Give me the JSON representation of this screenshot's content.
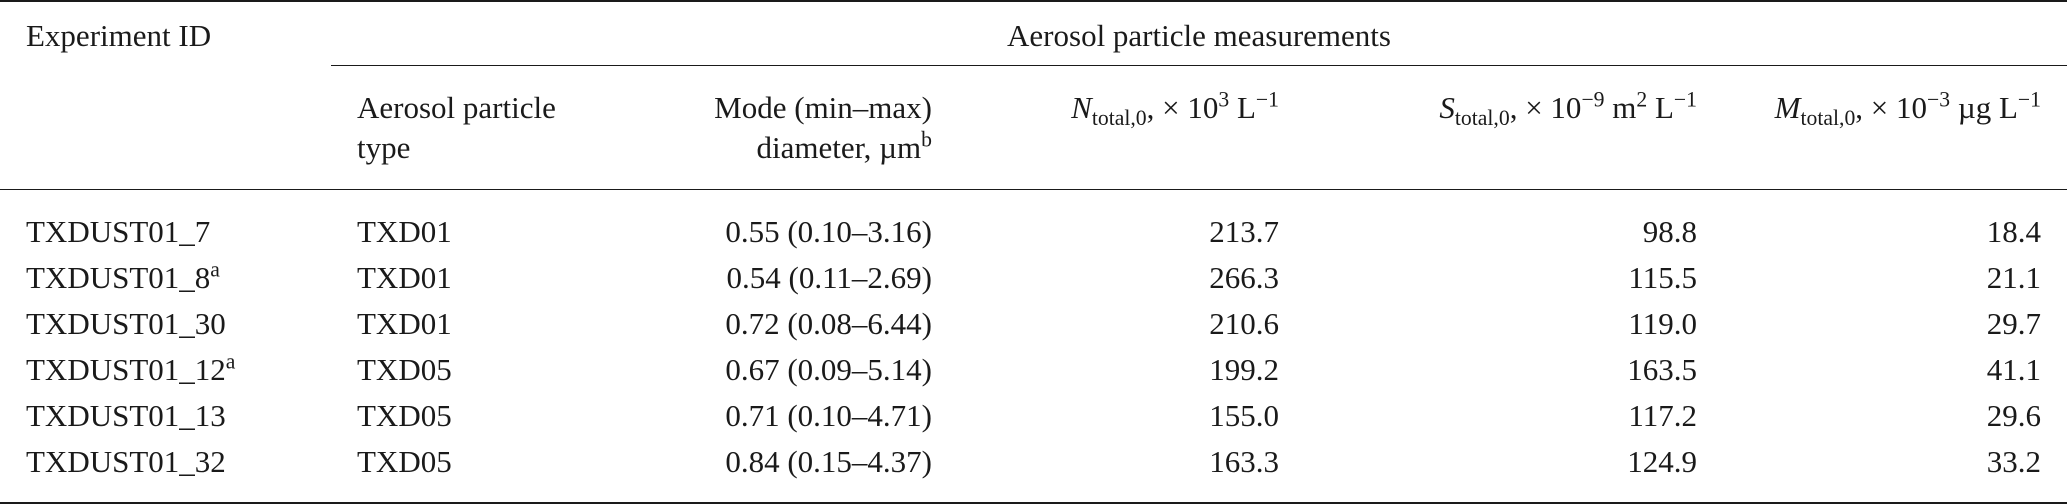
{
  "table": {
    "header": {
      "experiment_id": "Experiment ID",
      "group": "Aerosol particle measurements",
      "type_line1": "Aerosol particle",
      "type_line2": "type",
      "mode_line1": "Mode (min–max)",
      "mode_line2": "diameter, µm",
      "mode_sup": "b",
      "n_sym": "N",
      "n_sub": "total,0",
      "n_unit": ", × 10",
      "n_exp": "3",
      "n_unit2": " L",
      "n_unit2_exp": "−1",
      "s_sym": "S",
      "s_sub": "total,0",
      "s_unit": ", × 10",
      "s_exp": "−9",
      "s_unit2": " m",
      "s_unit2_exp": "2",
      "s_unit3": " L",
      "s_unit3_exp": "−1",
      "m_sym": "M",
      "m_sub": "total,0",
      "m_unit": ", × 10",
      "m_exp": "−3",
      "m_unit2": " µg L",
      "m_unit2_exp": "−1"
    },
    "rows": [
      {
        "id": "TXDUST01_7",
        "sup": "",
        "type": "TXD01",
        "mode": "0.55 (0.10–3.16)",
        "n": "213.7",
        "s": "98.8",
        "m": "18.4"
      },
      {
        "id": "TXDUST01_8",
        "sup": "a",
        "type": "TXD01",
        "mode": "0.54 (0.11–2.69)",
        "n": "266.3",
        "s": "115.5",
        "m": "21.1"
      },
      {
        "id": "TXDUST01_30",
        "sup": "",
        "type": "TXD01",
        "mode": "0.72 (0.08–6.44)",
        "n": "210.6",
        "s": "119.0",
        "m": "29.7"
      },
      {
        "id": "TXDUST01_12",
        "sup": "a",
        "type": "TXD05",
        "mode": "0.67 (0.09–5.14)",
        "n": "199.2",
        "s": "163.5",
        "m": "41.1"
      },
      {
        "id": "TXDUST01_13",
        "sup": "",
        "type": "TXD05",
        "mode": "0.71 (0.10–4.71)",
        "n": "155.0",
        "s": "117.2",
        "m": "29.6"
      },
      {
        "id": "TXDUST01_32",
        "sup": "",
        "type": "TXD05",
        "mode": "0.84 (0.15–4.37)",
        "n": "163.3",
        "s": "124.9",
        "m": "33.2"
      }
    ]
  }
}
